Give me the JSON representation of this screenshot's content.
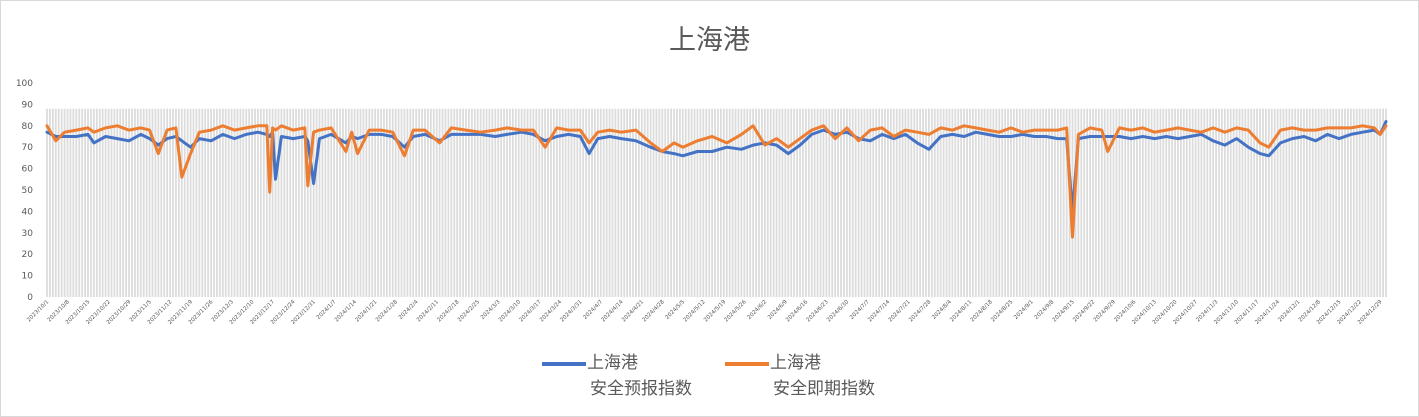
{
  "chart_data": {
    "type": "line",
    "title": "上海港",
    "ylim": [
      0,
      100
    ],
    "y_ticks": [
      "0",
      "10",
      "20",
      "30",
      "40",
      "50",
      "60",
      "70",
      "80",
      "90",
      "100"
    ],
    "grid": false,
    "legend_position": "bottom",
    "x_tick_labels": [
      "2023/10/1",
      "2023/10/8",
      "2023/10/15",
      "2023/10/22",
      "2023/10/29",
      "2023/11/5",
      "2023/11/12",
      "2023/11/19",
      "2023/11/26",
      "2023/12/3",
      "2023/12/10",
      "2023/12/17",
      "2023/12/24",
      "2023/12/31",
      "2024/1/7",
      "2024/1/14",
      "2024/1/21",
      "2024/1/28",
      "2024/2/4",
      "2024/2/11",
      "2024/2/18",
      "2024/2/25",
      "2024/3/3",
      "2024/3/10",
      "2024/3/17",
      "2024/3/24",
      "2024/3/31",
      "2024/4/7",
      "2024/4/14",
      "2024/4/21",
      "2024/4/28",
      "2024/5/5",
      "2024/5/12",
      "2024/5/19",
      "2024/5/26",
      "2024/6/2",
      "2024/6/9",
      "2024/6/16",
      "2024/6/23",
      "2024/6/30",
      "2024/7/7",
      "2024/7/14",
      "2024/7/21",
      "2024/7/28",
      "2024/8/4",
      "2024/8/11",
      "2024/8/18",
      "2024/8/25",
      "2024/9/1",
      "2024/9/8",
      "2024/9/15",
      "2024/9/22",
      "2024/9/29",
      "2024/10/6",
      "2024/10/13",
      "2024/10/20",
      "2024/10/27",
      "2024/11/3",
      "2024/11/10",
      "2024/11/17",
      "2024/11/24",
      "2024/12/1",
      "2024/12/8",
      "2024/12/15",
      "2024/12/22",
      "2024/12/29"
    ],
    "x": [
      "2023/10/1",
      "2023/10/4",
      "2023/10/7",
      "2023/10/11",
      "2023/10/15",
      "2023/10/17",
      "2023/10/21",
      "2023/10/25",
      "2023/10/29",
      "2023/11/2",
      "2023/11/5",
      "2023/11/8",
      "2023/11/11",
      "2023/11/14",
      "2023/11/16",
      "2023/11/19",
      "2023/11/22",
      "2023/11/26",
      "2023/11/30",
      "2023/12/4",
      "2023/12/8",
      "2023/12/12",
      "2023/12/15",
      "2023/12/16",
      "2023/12/17",
      "2023/12/18",
      "2023/12/20",
      "2023/12/24",
      "2023/12/28",
      "2023/12/29",
      "2023/12/31",
      "2024/1/2",
      "2024/1/6",
      "2024/1/11",
      "2024/1/13",
      "2024/1/15",
      "2024/1/19",
      "2024/1/23",
      "2024/1/27",
      "2024/1/31",
      "2024/2/3",
      "2024/2/7",
      "2024/2/12",
      "2024/2/16",
      "2024/2/21",
      "2024/2/26",
      "2024/3/2",
      "2024/3/6",
      "2024/3/11",
      "2024/3/15",
      "2024/3/19",
      "2024/3/23",
      "2024/3/27",
      "2024/3/31",
      "2024/4/3",
      "2024/4/6",
      "2024/4/10",
      "2024/4/14",
      "2024/4/19",
      "2024/4/24",
      "2024/4/28",
      "2024/5/2",
      "2024/5/5",
      "2024/5/10",
      "2024/5/15",
      "2024/5/20",
      "2024/5/25",
      "2024/5/29",
      "2024/6/2",
      "2024/6/6",
      "2024/6/10",
      "2024/6/14",
      "2024/6/18",
      "2024/6/22",
      "2024/6/26",
      "2024/6/30",
      "2024/7/4",
      "2024/7/8",
      "2024/7/12",
      "2024/7/16",
      "2024/7/20",
      "2024/7/24",
      "2024/7/28",
      "2024/8/1",
      "2024/8/5",
      "2024/8/9",
      "2024/8/13",
      "2024/8/17",
      "2024/8/21",
      "2024/8/25",
      "2024/8/29",
      "2024/9/2",
      "2024/9/6",
      "2024/9/10",
      "2024/9/13",
      "2024/9/15",
      "2024/9/17",
      "2024/9/21",
      "2024/9/25",
      "2024/9/27",
      "2024/10/1",
      "2024/10/5",
      "2024/10/9",
      "2024/10/13",
      "2024/10/17",
      "2024/10/21",
      "2024/10/25",
      "2024/10/29",
      "2024/11/2",
      "2024/11/6",
      "2024/11/10",
      "2024/11/14",
      "2024/11/18",
      "2024/11/21",
      "2024/11/25",
      "2024/11/29",
      "2024/12/3",
      "2024/12/7",
      "2024/12/11",
      "2024/12/15",
      "2024/12/19",
      "2024/12/23",
      "2024/12/27",
      "2024/12/29",
      "2024/12/31"
    ],
    "series": [
      {
        "name": "上海港 安全预报指数",
        "name_line1": "上海港",
        "name_line2": "安全预报指数",
        "color": "#4472c4",
        "values": [
          77,
          75,
          75,
          75,
          76,
          72,
          75,
          74,
          73,
          76,
          74,
          71,
          74,
          75,
          73,
          70,
          74,
          73,
          76,
          74,
          76,
          77,
          76,
          75,
          77,
          55,
          75,
          74,
          75,
          73,
          53,
          74,
          76,
          72,
          75,
          74,
          76,
          76,
          75,
          70,
          75,
          76,
          73,
          76,
          76,
          76,
          75,
          76,
          77,
          76,
          73,
          75,
          76,
          75,
          67,
          74,
          75,
          74,
          73,
          70,
          68,
          67,
          66,
          68,
          68,
          70,
          69,
          71,
          72,
          71,
          67,
          71,
          76,
          78,
          76,
          77,
          74,
          73,
          76,
          74,
          76,
          72,
          69,
          75,
          76,
          75,
          77,
          76,
          75,
          75,
          76,
          75,
          75,
          74,
          74,
          40,
          74,
          75,
          75,
          75,
          75,
          74,
          75,
          74,
          75,
          74,
          75,
          76,
          73,
          71,
          74,
          70,
          67,
          66,
          72,
          74,
          75,
          73,
          76,
          74,
          76,
          77,
          78,
          76,
          82
        ]
      },
      {
        "name": "上海港 安全即期指数",
        "name_line1": "上海港",
        "name_line2": "安全即期指数",
        "color": "#ed7d31",
        "values": [
          80,
          73,
          77,
          78,
          79,
          77,
          79,
          80,
          78,
          79,
          78,
          67,
          78,
          79,
          56,
          67,
          77,
          78,
          80,
          78,
          79,
          80,
          80,
          49,
          79,
          78,
          80,
          78,
          79,
          52,
          77,
          78,
          79,
          68,
          77,
          67,
          78,
          78,
          77,
          66,
          78,
          78,
          72,
          79,
          78,
          77,
          78,
          79,
          78,
          78,
          70,
          79,
          78,
          78,
          72,
          77,
          78,
          77,
          78,
          72,
          68,
          72,
          70,
          73,
          75,
          72,
          76,
          80,
          71,
          74,
          70,
          74,
          78,
          80,
          74,
          79,
          73,
          78,
          79,
          75,
          78,
          77,
          76,
          79,
          78,
          80,
          79,
          78,
          77,
          79,
          77,
          78,
          78,
          78,
          79,
          28,
          76,
          79,
          78,
          68,
          79,
          78,
          79,
          77,
          78,
          79,
          78,
          77,
          79,
          77,
          79,
          78,
          72,
          70,
          78,
          79,
          78,
          78,
          79,
          79,
          79,
          80,
          79,
          76,
          80
        ]
      }
    ]
  }
}
